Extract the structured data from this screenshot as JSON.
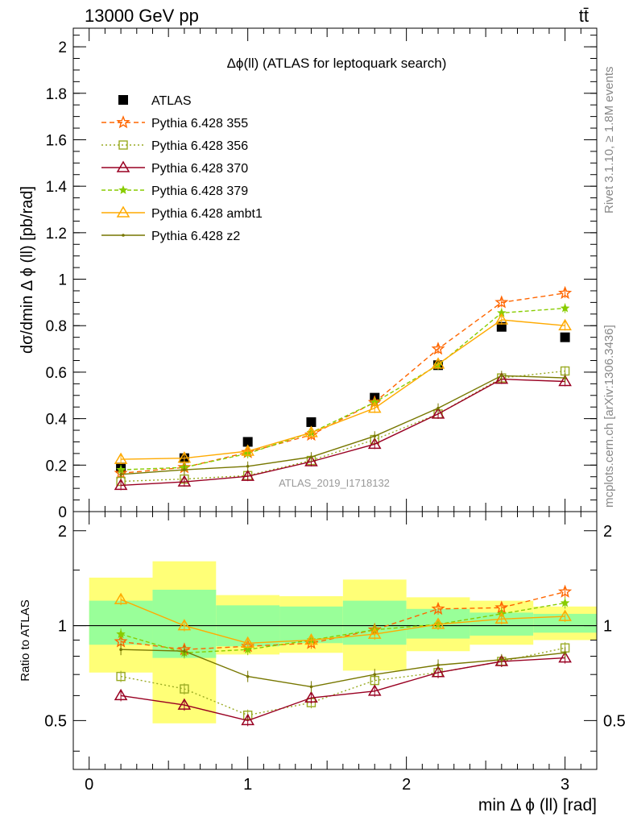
{
  "header": {
    "left": "13000 GeV pp",
    "right": "tt̄"
  },
  "side_labels": {
    "rivet": "Rivet 3.1.10, ≥ 1.8M events",
    "mcplots": "mcplots.cern.ch [arXiv:1306.3436]"
  },
  "watermark": "ATLAS_2019_I1718132",
  "colors": {
    "ATLAS": "#000000",
    "355": "#ff6600",
    "356": "#99aa22",
    "370": "#990022",
    "379": "#88cc00",
    "ambt1": "#ffaa00",
    "z2": "#777700",
    "band_inner": "#99ff99",
    "band_outer": "#ffff77"
  },
  "chart_data": [
    {
      "type": "line",
      "title": "Δϕ(ll) (ATLAS for leptoquark search)",
      "ylabel": "dσ/dmin Δ ϕ (ll) [pb/rad]",
      "xlim": [
        -0.1,
        3.2
      ],
      "ylim": [
        0,
        2.08
      ],
      "yticks": [
        "0",
        "0.2",
        "0.4",
        "0.6",
        "0.8",
        "1",
        "1.2",
        "1.4",
        "1.6",
        "1.8",
        "2"
      ],
      "x": [
        0.2,
        0.6,
        1.0,
        1.4,
        1.8,
        2.2,
        2.6,
        3.0
      ],
      "series": [
        {
          "name": "ATLAS",
          "values": [
            0.19,
            0.23,
            0.3,
            0.385,
            0.49,
            0.63,
            0.795,
            0.75
          ]
        },
        {
          "name": "Pythia 6.428 355",
          "values": [
            0.165,
            0.19,
            0.255,
            0.33,
            0.47,
            0.7,
            0.9,
            0.94
          ]
        },
        {
          "name": "Pythia 6.428 356",
          "values": [
            0.13,
            0.14,
            0.155,
            0.22,
            0.31,
            0.42,
            0.575,
            0.605
          ]
        },
        {
          "name": "Pythia 6.428 370",
          "values": [
            0.113,
            0.128,
            0.152,
            0.215,
            0.29,
            0.42,
            0.57,
            0.56
          ]
        },
        {
          "name": "Pythia 6.428 379",
          "values": [
            0.18,
            0.19,
            0.25,
            0.34,
            0.47,
            0.63,
            0.855,
            0.875
          ]
        },
        {
          "name": "Pythia 6.428 ambt1",
          "values": [
            0.225,
            0.23,
            0.26,
            0.34,
            0.445,
            0.635,
            0.825,
            0.8
          ]
        },
        {
          "name": "Pythia 6.428 z2",
          "values": [
            0.16,
            0.18,
            0.195,
            0.235,
            0.325,
            0.445,
            0.585,
            0.575
          ]
        }
      ]
    },
    {
      "type": "line",
      "ylabel": "Ratio to ATLAS",
      "xlabel": "min Δ ϕ (ll) [rad]",
      "xlim": [
        -0.1,
        3.2
      ],
      "ylim": [
        0.35,
        2.3
      ],
      "yscale": "log",
      "yticks": [
        "0.5",
        "1",
        "2"
      ],
      "xticks": [
        "0",
        "1",
        "2",
        "3"
      ],
      "x": [
        0.2,
        0.6,
        1.0,
        1.4,
        1.8,
        2.2,
        2.6,
        3.0
      ],
      "bins": [
        [
          0.0,
          0.4
        ],
        [
          0.4,
          0.8
        ],
        [
          0.8,
          1.2
        ],
        [
          1.2,
          1.6
        ],
        [
          1.6,
          2.0
        ],
        [
          2.0,
          2.4
        ],
        [
          2.4,
          2.8
        ],
        [
          2.8,
          3.2
        ]
      ],
      "band_inner": [
        [
          0.87,
          1.2
        ],
        [
          0.79,
          1.3
        ],
        [
          0.86,
          1.16
        ],
        [
          0.88,
          1.15
        ],
        [
          0.87,
          1.2
        ],
        [
          0.91,
          1.13
        ],
        [
          0.93,
          1.1
        ],
        [
          0.95,
          1.09
        ]
      ],
      "band_outer": [
        [
          0.71,
          1.42
        ],
        [
          0.49,
          1.6
        ],
        [
          0.81,
          1.25
        ],
        [
          0.82,
          1.24
        ],
        [
          0.72,
          1.4
        ],
        [
          0.83,
          1.23
        ],
        [
          0.87,
          1.2
        ],
        [
          0.9,
          1.15
        ]
      ],
      "series": [
        {
          "name": "Pythia 6.428 355",
          "values": [
            0.89,
            0.84,
            0.86,
            0.88,
            0.97,
            1.13,
            1.14,
            1.28
          ]
        },
        {
          "name": "Pythia 6.428 356",
          "values": [
            0.69,
            0.63,
            0.52,
            0.57,
            0.67,
            0.71,
            0.77,
            0.85
          ]
        },
        {
          "name": "Pythia 6.428 370",
          "values": [
            0.6,
            0.56,
            0.5,
            0.59,
            0.62,
            0.71,
            0.77,
            0.79
          ]
        },
        {
          "name": "Pythia 6.428 379",
          "values": [
            0.94,
            0.82,
            0.84,
            0.9,
            0.97,
            1.01,
            1.09,
            1.18
          ]
        },
        {
          "name": "Pythia 6.428 ambt1",
          "values": [
            1.21,
            1.0,
            0.88,
            0.9,
            0.94,
            1.01,
            1.05,
            1.07
          ]
        },
        {
          "name": "Pythia 6.428 z2",
          "values": [
            0.84,
            0.83,
            0.69,
            0.64,
            0.7,
            0.75,
            0.78,
            0.82
          ]
        }
      ]
    }
  ]
}
